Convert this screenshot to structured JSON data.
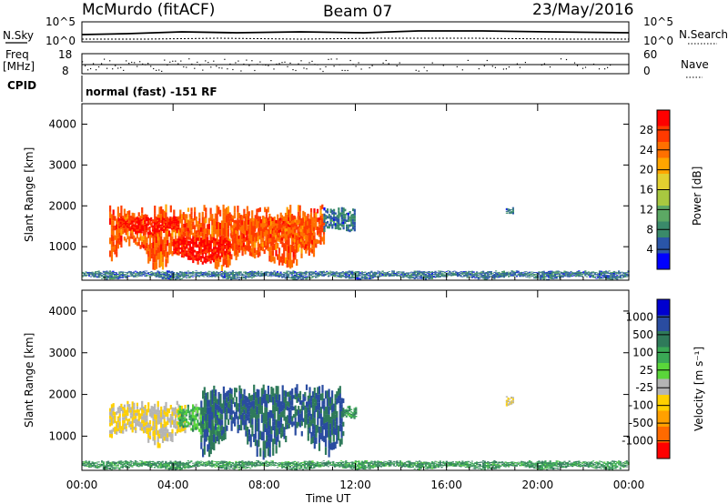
{
  "header": {
    "station": "McMurdo (fitACF)",
    "beam": "Beam 07",
    "date": "23/May/2016"
  },
  "strips": {
    "nsky_label": "N.Sky",
    "nsky_ticks": [
      "10^5",
      "10^0"
    ],
    "nsearch_label": "N.Search",
    "nsearch_ticks": [
      "10^5",
      "10^0"
    ],
    "freq_label_1": "Freq",
    "freq_label_2": "[MHz]",
    "freq_ticks": [
      "18",
      "8"
    ],
    "nave_label": "Nave",
    "nave_ticks": [
      "60",
      "0"
    ],
    "cpid_label": "CPID",
    "cpid_text": "normal (fast) -151 RF"
  },
  "panels": {
    "ylabel": "Slant Range [km]",
    "yticks": [
      "4000",
      "3000",
      "2000",
      "1000"
    ],
    "xticks": [
      "00:00",
      "04:00",
      "08:00",
      "12:00",
      "16:00",
      "20:00",
      "00:00"
    ],
    "xlabel": "Time UT"
  },
  "colorbars": {
    "power": {
      "label": "Power [dB]",
      "ticks": [
        "28",
        "24",
        "20",
        "16",
        "12",
        "8",
        "4"
      ],
      "colors": [
        "#ff0000",
        "#ff3a00",
        "#ff7000",
        "#ffa500",
        "#e3d030",
        "#a8c840",
        "#5ca864",
        "#3a8a6a",
        "#2a55a8",
        "#0000ff"
      ]
    },
    "velocity": {
      "label": "Velocity [m s⁻¹]",
      "ticks": [
        "1000",
        "500",
        "100",
        "25",
        "-25",
        "-100",
        "-500",
        "-1000"
      ],
      "colors": [
        "#0000d0",
        "#2a4ca0",
        "#2f7a5a",
        "#3aa855",
        "#5ad63a",
        "#b4b4b4",
        "#ffd000",
        "#ffa000",
        "#ff6a00",
        "#ff0000"
      ]
    }
  },
  "chart_data": [
    {
      "type": "heatmap",
      "title": "Power",
      "x_range": [
        "00:00",
        "24:00"
      ],
      "ylim": [
        180,
        4500
      ],
      "ylabel": "Slant Range [km]",
      "xlabel": "Time UT",
      "colorbar_label": "Power [dB]",
      "colorbar_ticks": [
        4,
        8,
        12,
        16,
        20,
        24,
        28
      ],
      "features": [
        {
          "time_start": 1.2,
          "time_end": 10.6,
          "range_start": 500,
          "range_end": 1900,
          "value": 24
        },
        {
          "time_start": 1.6,
          "time_end": 4.2,
          "range_start": 1300,
          "range_end": 1700,
          "value": 28
        },
        {
          "time_start": 4.0,
          "time_end": 6.5,
          "range_start": 600,
          "range_end": 1200,
          "value": 28
        },
        {
          "time_start": 6.5,
          "time_end": 10.2,
          "range_start": 800,
          "range_end": 1700,
          "value": 24
        },
        {
          "time_start": 10.6,
          "time_end": 12.0,
          "range_start": 1200,
          "range_end": 1900,
          "value": 8
        },
        {
          "time_start": 0.0,
          "time_end": 24.0,
          "range_start": 200,
          "range_end": 400,
          "value": 8
        },
        {
          "time_start": 18.6,
          "time_end": 18.9,
          "range_start": 1700,
          "range_end": 1950,
          "value": 8
        }
      ]
    },
    {
      "type": "heatmap",
      "title": "Velocity",
      "x_range": [
        "00:00",
        "24:00"
      ],
      "ylim": [
        180,
        4500
      ],
      "ylabel": "Slant Range [km]",
      "xlabel": "Time UT",
      "colorbar_label": "Velocity [m s-1]",
      "colorbar_ticks": [
        -1000,
        -500,
        -100,
        -25,
        25,
        100,
        500,
        1000
      ],
      "features": [
        {
          "time_start": 1.2,
          "time_end": 4.5,
          "range_start": 800,
          "range_end": 1750,
          "value": -100
        },
        {
          "time_start": 4.2,
          "time_end": 6.0,
          "range_start": 900,
          "range_end": 1700,
          "value": 0
        },
        {
          "time_start": 5.2,
          "time_end": 11.5,
          "range_start": 550,
          "range_end": 2100,
          "value": 100
        },
        {
          "time_start": 11.5,
          "time_end": 12.0,
          "range_start": 1300,
          "range_end": 1700,
          "value": 25
        },
        {
          "time_start": 18.6,
          "time_end": 18.9,
          "range_start": 1700,
          "range_end": 1950,
          "value": -100
        },
        {
          "time_start": 0.0,
          "time_end": 24.0,
          "range_start": 200,
          "range_end": 400,
          "value": 25
        }
      ]
    }
  ]
}
